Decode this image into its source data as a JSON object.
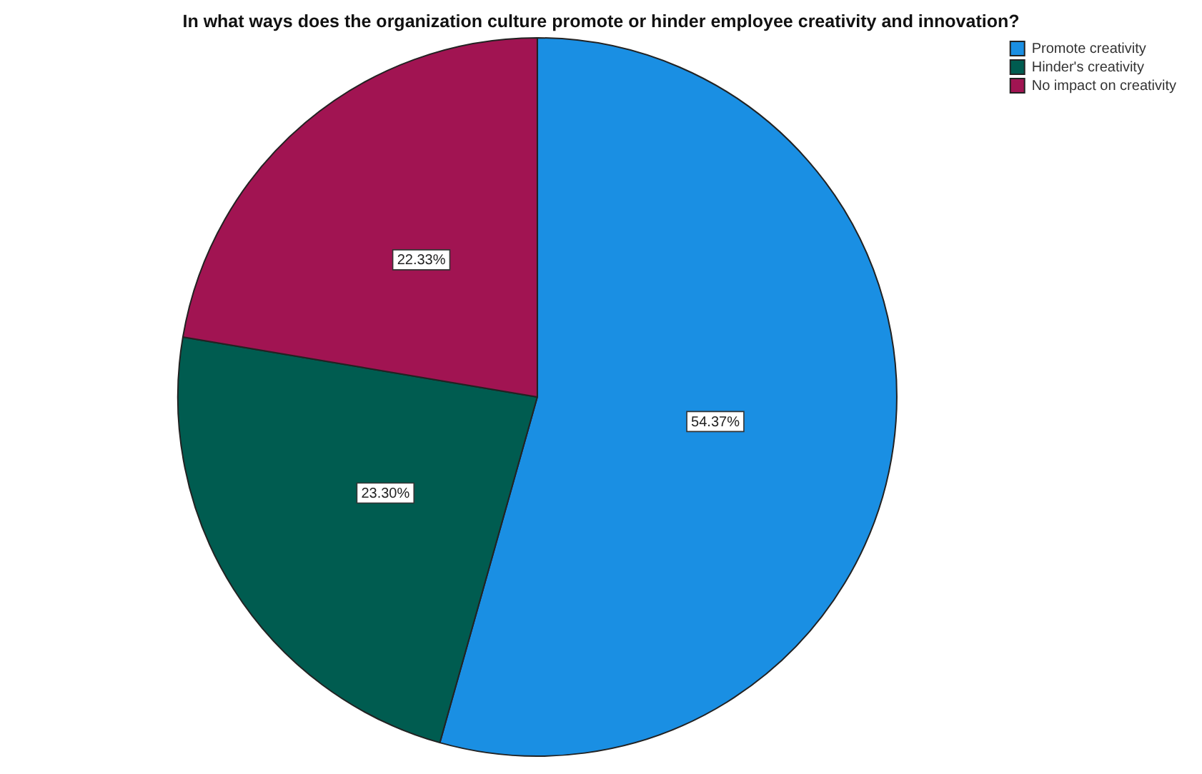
{
  "chart_data": {
    "type": "pie",
    "title": "In what ways does the organization culture promote or hinder employee creativity and innovation?",
    "categories": [
      "Promote creativity",
      "Hinder's creativity",
      "No impact on creativity"
    ],
    "values": [
      54.37,
      23.3,
      22.33
    ],
    "value_labels": [
      "54.37%",
      "23.30%",
      "22.33%"
    ],
    "colors": [
      "#1a8fe3",
      "#005c50",
      "#a11452"
    ],
    "legend": "top right"
  }
}
